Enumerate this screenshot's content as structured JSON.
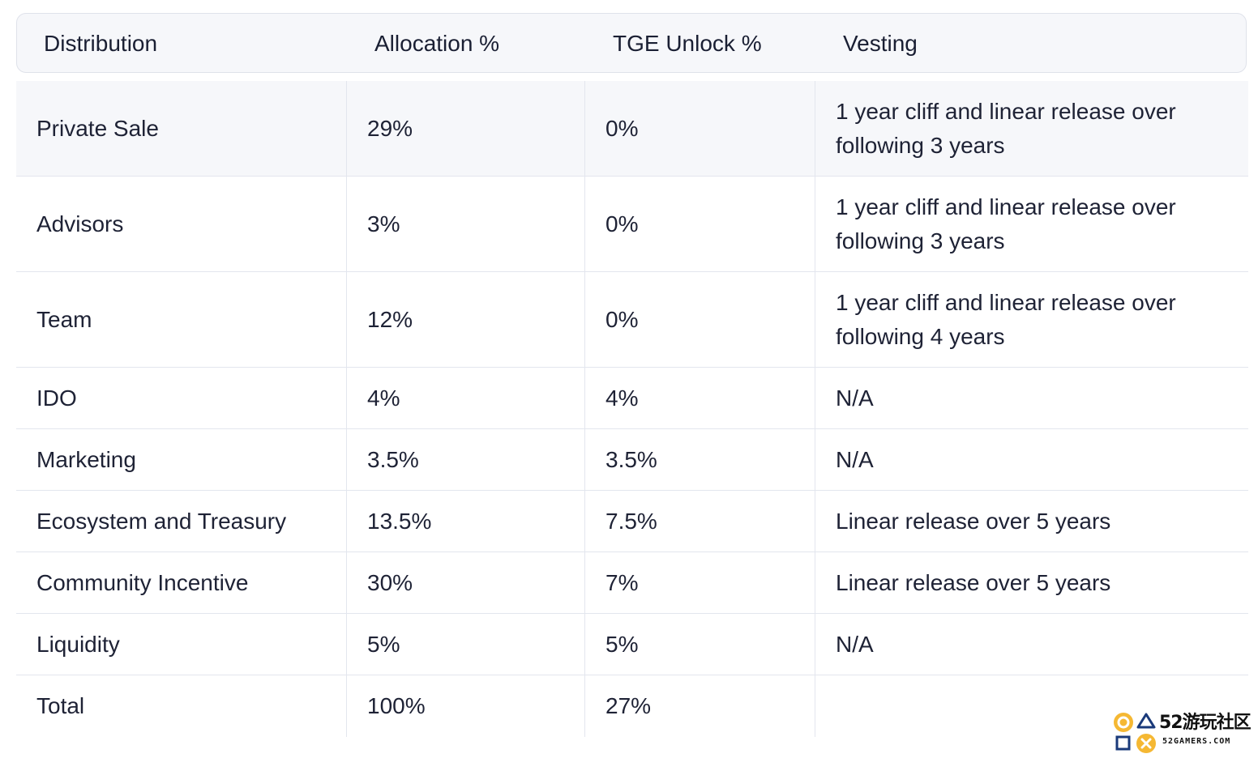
{
  "table": {
    "headers": [
      "Distribution",
      "Allocation %",
      "TGE Unlock %",
      "Vesting"
    ],
    "rows": [
      {
        "distribution": "Private Sale",
        "allocation": "29%",
        "tge": "0%",
        "vesting": "1 year cliff and linear release over following 3 years"
      },
      {
        "distribution": "Advisors",
        "allocation": "3%",
        "tge": "0%",
        "vesting": "1 year cliff and linear release over following 3 years"
      },
      {
        "distribution": "Team",
        "allocation": "12%",
        "tge": "0%",
        "vesting": "1 year cliff and linear release over following 4 years"
      },
      {
        "distribution": "IDO",
        "allocation": "4%",
        "tge": "4%",
        "vesting": "N/A"
      },
      {
        "distribution": "Marketing",
        "allocation": "3.5%",
        "tge": "3.5%",
        "vesting": "N/A"
      },
      {
        "distribution": "Ecosystem and Treasury",
        "allocation": "13.5%",
        "tge": "7.5%",
        "vesting": "Linear release over 5 years"
      },
      {
        "distribution": "Community Incentive",
        "allocation": "30%",
        "tge": "7%",
        "vesting": "Linear release over 5 years"
      },
      {
        "distribution": "Liquidity",
        "allocation": "5%",
        "tge": "5%",
        "vesting": "N/A"
      },
      {
        "distribution": "Total",
        "allocation": "100%",
        "tge": "27%",
        "vesting": ""
      }
    ]
  },
  "watermark": {
    "title": "52游玩社区",
    "subtitle": "52GAMERS.COM",
    "icon": "controller-buttons-icon",
    "accent_color": "#f5b833"
  },
  "colors": {
    "header_bg": "#f6f7fa",
    "row_shaded_bg": "#f6f7fa",
    "border": "#e3e6ee",
    "text": "#1e2235"
  }
}
